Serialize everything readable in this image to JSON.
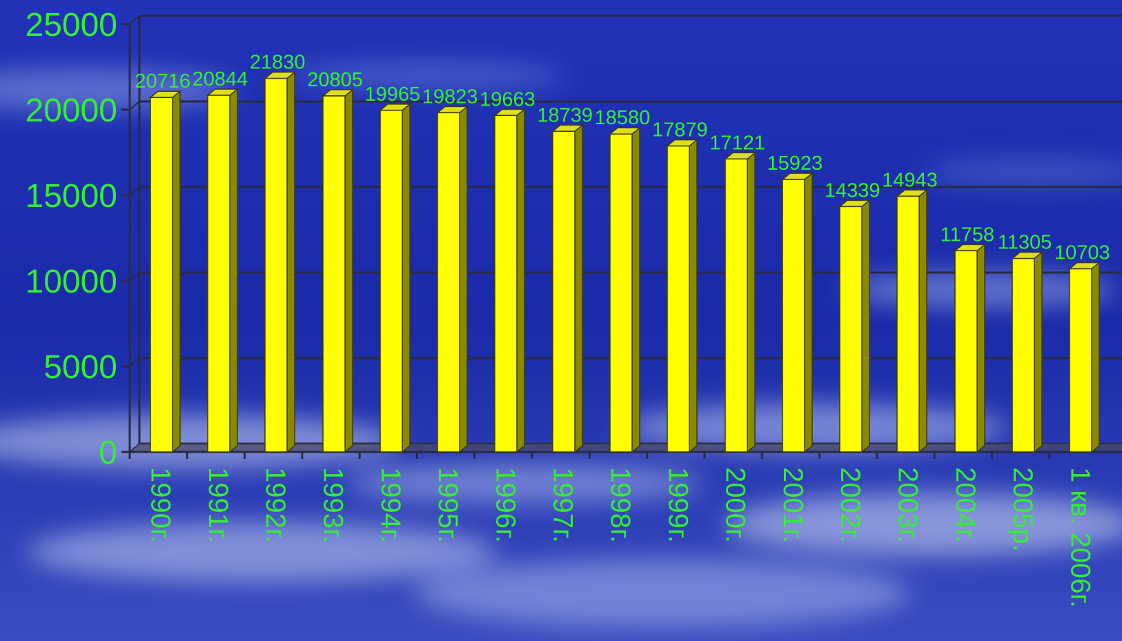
{
  "chart_data": {
    "type": "bar",
    "title": "",
    "xlabel": "",
    "ylabel": "",
    "ylim": [
      0,
      25000
    ],
    "yticks": [
      0,
      5000,
      10000,
      15000,
      20000,
      25000
    ],
    "grid": true,
    "legend": "none",
    "bar_color": "#ffff00",
    "bar_side_color": "#8a8a00",
    "bar_top_color": "#dede1a",
    "label_color": "#33ee33",
    "grid_color": "#2a2a44",
    "categories": [
      "1990г.",
      "1991г.",
      "1992г.",
      "1993г.",
      "1994г.",
      "1995г.",
      "1996г.",
      "1997г.",
      "1998г.",
      "1999г.",
      "2000г.",
      "2001г.",
      "2002г.",
      "2003г.",
      "2004г.",
      "2005р.",
      "1 кв. 2006г."
    ],
    "values": [
      20716,
      20844,
      21830,
      20805,
      19965,
      19823,
      19663,
      18739,
      18580,
      17879,
      17121,
      15923,
      14339,
      14943,
      11758,
      11305,
      10703
    ],
    "data_labels": [
      "20716",
      "20844",
      "21830",
      "20805",
      "19965",
      "19823",
      "19663",
      "18739",
      "18580",
      "17879",
      "17121",
      "15923",
      "14339",
      "14943",
      "11758",
      "11305",
      "10703"
    ]
  }
}
